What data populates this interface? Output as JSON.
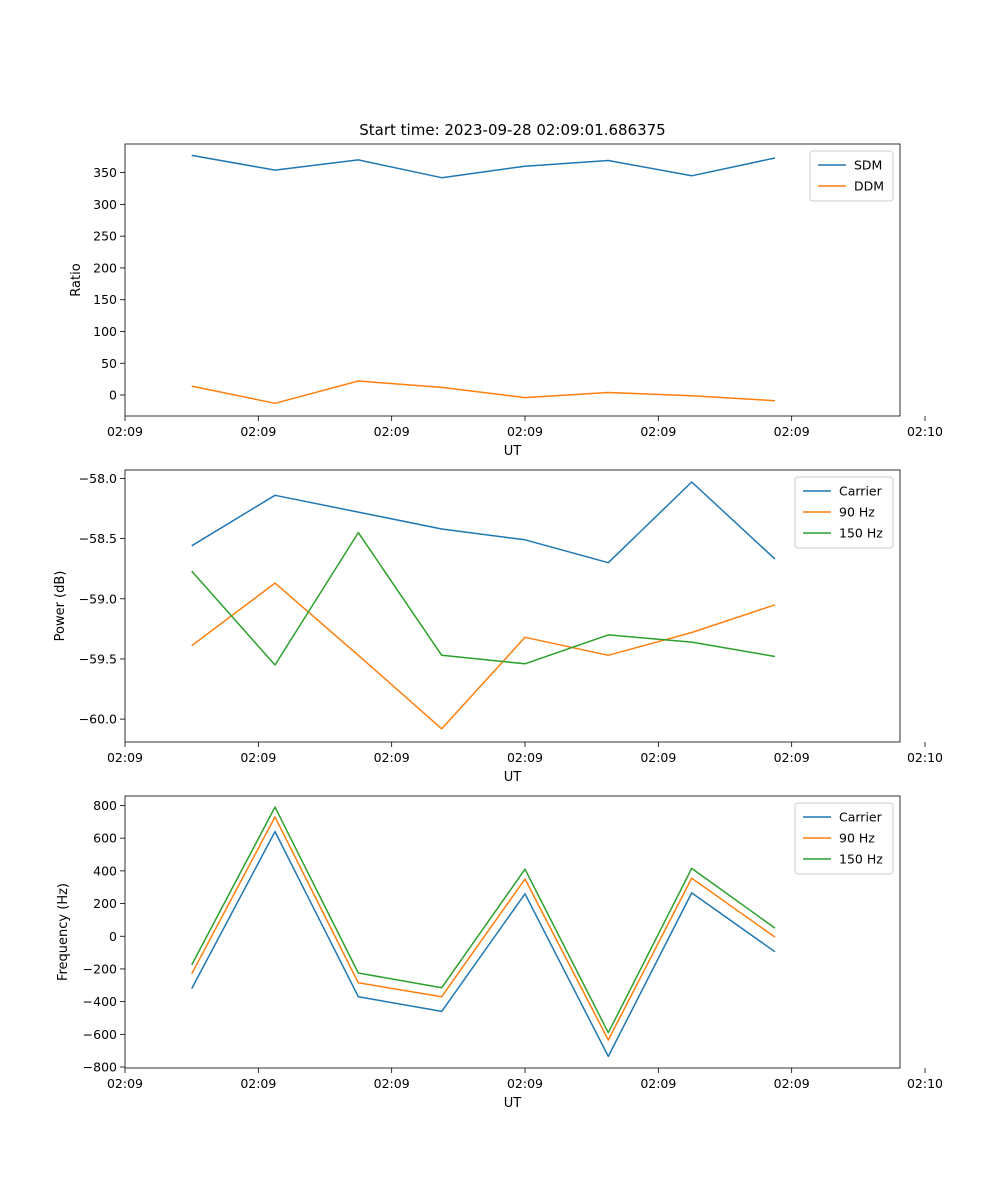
{
  "figure_title": "Start time: 2023-09-28 02:09:01.686375",
  "colors": {
    "blue": "#1f77b4",
    "orange": "#ff7f0e",
    "green": "#2ca02c"
  },
  "chart_data": [
    {
      "type": "line",
      "title": "Start time: 2023-09-28 02:09:01.686375",
      "xlabel": "UT",
      "ylabel": "Ratio",
      "x": [
        1,
        2,
        3,
        4,
        5,
        6,
        7,
        8
      ],
      "xlim": [
        0.2,
        9.5
      ],
      "ylim": [
        -33,
        395
      ],
      "xticks": [
        0.2,
        1.8,
        3.4,
        5.0,
        6.6,
        8.2,
        9.8
      ],
      "xtick_labels": [
        "02:09",
        "02:09",
        "02:09",
        "02:09",
        "02:09",
        "02:09",
        "02:10"
      ],
      "yticks": [
        0,
        50,
        100,
        150,
        200,
        250,
        300,
        350
      ],
      "ytick_labels": [
        "0",
        "50",
        "100",
        "150",
        "200",
        "250",
        "300",
        "350"
      ],
      "legend_position": "top-right",
      "series": [
        {
          "name": "SDM",
          "color": "#1f77b4",
          "values": [
            377,
            354,
            370,
            342,
            360,
            369,
            345,
            373
          ]
        },
        {
          "name": "DDM",
          "color": "#ff7f0e",
          "values": [
            14,
            -13,
            22,
            12,
            -4,
            4,
            -1,
            -9
          ]
        }
      ]
    },
    {
      "type": "line",
      "xlabel": "UT",
      "ylabel": "Power (dB)",
      "x": [
        1,
        2,
        3,
        4,
        5,
        6,
        7,
        8
      ],
      "xlim": [
        0.2,
        9.5
      ],
      "ylim": [
        -60.19,
        -57.93
      ],
      "xticks": [
        0.2,
        1.8,
        3.4,
        5.0,
        6.6,
        8.2,
        9.8
      ],
      "xtick_labels": [
        "02:09",
        "02:09",
        "02:09",
        "02:09",
        "02:09",
        "02:09",
        "02:10"
      ],
      "yticks": [
        -58.0,
        -58.5,
        -59.0,
        -59.5,
        -60.0
      ],
      "ytick_labels": [
        "−58.0",
        "−58.5",
        "−59.0",
        "−59.5",
        "−60.0"
      ],
      "legend_position": "top-right",
      "series": [
        {
          "name": "Carrier",
          "color": "#1f77b4",
          "values": [
            -58.56,
            -58.14,
            -58.28,
            -58.42,
            -58.51,
            -58.7,
            -58.03,
            -58.67
          ]
        },
        {
          "name": "90 Hz",
          "color": "#ff7f0e",
          "values": [
            -59.39,
            -58.87,
            -59.47,
            -60.08,
            -59.32,
            -59.47,
            -59.28,
            -59.05
          ]
        },
        {
          "name": "150 Hz",
          "color": "#2ca02c",
          "values": [
            -58.77,
            -59.55,
            -58.45,
            -59.47,
            -59.54,
            -59.3,
            -59.36,
            -59.48
          ]
        }
      ]
    },
    {
      "type": "line",
      "xlabel": "UT",
      "ylabel": "Frequency (Hz)",
      "x": [
        1,
        2,
        3,
        4,
        5,
        6,
        7,
        8
      ],
      "xlim": [
        0.2,
        9.5
      ],
      "ylim": [
        -806,
        858
      ],
      "xticks": [
        0.2,
        1.8,
        3.4,
        5.0,
        6.6,
        8.2,
        9.8
      ],
      "xtick_labels": [
        "02:09",
        "02:09",
        "02:09",
        "02:09",
        "02:09",
        "02:09",
        "02:10"
      ],
      "yticks": [
        800,
        600,
        400,
        200,
        0,
        -200,
        -400,
        -600,
        -800
      ],
      "ytick_labels": [
        "800",
        "600",
        "400",
        "200",
        "0",
        "−200",
        "−400",
        "−600",
        "−800"
      ],
      "legend_position": "top-right",
      "series": [
        {
          "name": "Carrier",
          "color": "#1f77b4",
          "values": [
            -320,
            640,
            -370,
            -460,
            260,
            -735,
            265,
            -95
          ]
        },
        {
          "name": "90 Hz",
          "color": "#ff7f0e",
          "values": [
            -230,
            730,
            -285,
            -370,
            350,
            -635,
            355,
            -5
          ]
        },
        {
          "name": "150 Hz",
          "color": "#2ca02c",
          "values": [
            -175,
            790,
            -225,
            -315,
            410,
            -590,
            415,
            50
          ]
        }
      ]
    }
  ]
}
